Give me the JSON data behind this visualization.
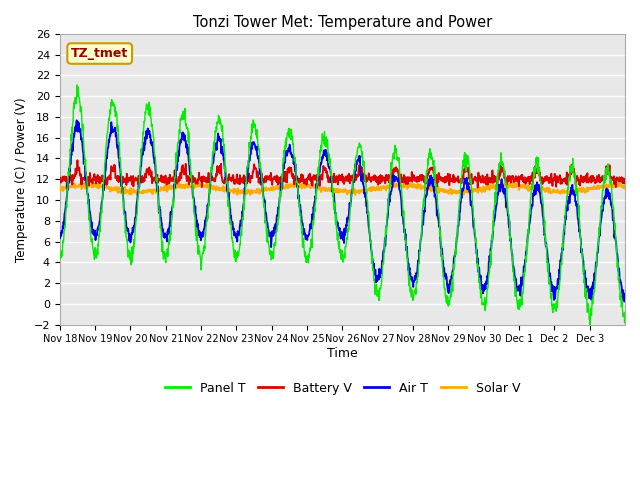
{
  "title": "Tonzi Tower Met: Temperature and Power",
  "xlabel": "Time",
  "ylabel": "Temperature (C) / Power (V)",
  "ylim": [
    -2,
    26
  ],
  "fig_bg": "#ffffff",
  "plot_bg": "#e8e8e8",
  "grid_color": "#ffffff",
  "annotation_text": "TZ_tmet",
  "annotation_bg": "#ffffcc",
  "annotation_fg": "#990000",
  "legend_entries": [
    "Panel T",
    "Battery V",
    "Air T",
    "Solar V"
  ],
  "line_colors": [
    "#00ee00",
    "#dd0000",
    "#0000ee",
    "#ffaa00"
  ],
  "xtick_labels": [
    "Nov 18",
    "Nov 19",
    "Nov 20",
    "Nov 21",
    "Nov 22",
    "Nov 23",
    "Nov 24",
    "Nov 25",
    "Nov 26",
    "Nov 27",
    "Nov 28",
    "Nov 29",
    "Nov 30",
    "Dec 1",
    "Dec 2",
    "Dec 3"
  ],
  "n_days": 16
}
